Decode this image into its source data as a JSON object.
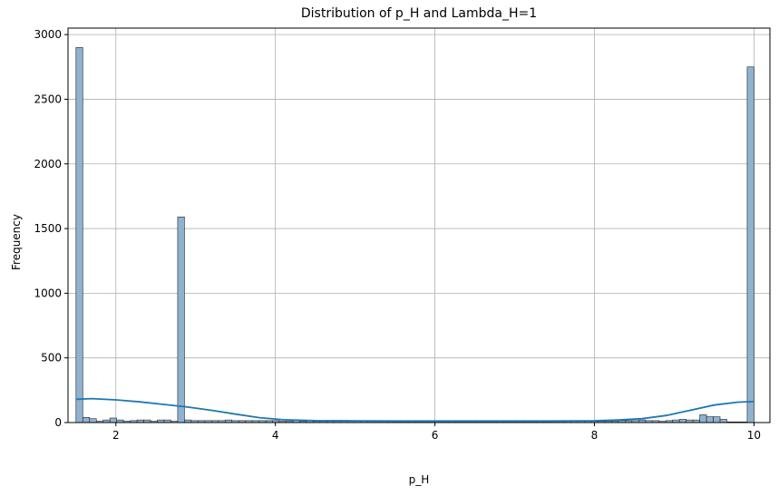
{
  "chart_data": {
    "type": "bar",
    "title": "Distribution of p_H and Lambda_H=1",
    "xlabel": "p_H",
    "ylabel": "Frequency",
    "xlim": [
      1.4,
      10.2
    ],
    "ylim": [
      0,
      3050
    ],
    "x_ticks": [
      2,
      4,
      6,
      8,
      10
    ],
    "y_ticks": [
      0,
      500,
      1000,
      1500,
      2000,
      2500,
      3000
    ],
    "grid": true,
    "bin_range": [
      1.5,
      10.0
    ],
    "bin_width": 0.085,
    "values": [
      2900,
      40,
      30,
      10,
      20,
      35,
      20,
      10,
      15,
      20,
      20,
      10,
      20,
      20,
      10,
      1590,
      20,
      15,
      15,
      15,
      15,
      15,
      20,
      15,
      15,
      15,
      15,
      15,
      15,
      15,
      10,
      10,
      20,
      10,
      15,
      10,
      10,
      10,
      10,
      10,
      10,
      10,
      10,
      10,
      10,
      10,
      10,
      10,
      10,
      10,
      10,
      10,
      10,
      10,
      10,
      10,
      10,
      10,
      10,
      10,
      10,
      10,
      10,
      10,
      10,
      10,
      10,
      10,
      10,
      10,
      10,
      10,
      10,
      10,
      10,
      10,
      10,
      10,
      10,
      10,
      15,
      15,
      15,
      20,
      15,
      15,
      10,
      15,
      20,
      25,
      20,
      20,
      60,
      45,
      45,
      25,
      5,
      5,
      5,
      2750
    ],
    "kde": {
      "x": [
        1.5,
        1.7,
        2.0,
        2.3,
        2.6,
        2.9,
        3.2,
        3.5,
        3.8,
        4.1,
        4.5,
        5.0,
        5.5,
        6.0,
        6.5,
        7.0,
        7.5,
        8.0,
        8.3,
        8.6,
        8.9,
        9.2,
        9.5,
        9.8,
        10.0
      ],
      "y": [
        180,
        185,
        175,
        160,
        140,
        120,
        95,
        65,
        38,
        22,
        15,
        13,
        12,
        12,
        12,
        12,
        12,
        14,
        20,
        30,
        55,
        95,
        135,
        158,
        162
      ]
    },
    "colors": {
      "bar_fill": "#8fb2d0",
      "bar_edge": "#222222",
      "kde_line": "#1f77b4",
      "grid": "#b0b0b0"
    }
  }
}
